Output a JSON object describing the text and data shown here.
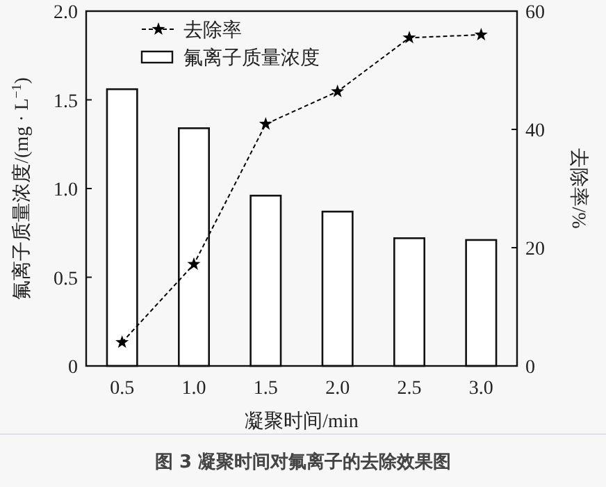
{
  "chart_data": {
    "type": "bar",
    "xlabel": "凝聚时间/min",
    "ylabel": "氟离子质量浓度/(mg · L$^{−1}$)",
    "y2label": "去除率/%",
    "categories": [
      "0.5",
      "1.0",
      "1.5",
      "2.0",
      "2.5",
      "3.0"
    ],
    "series": [
      {
        "name": "氟离子质量浓度",
        "color": "#ffffff",
        "values": [
          1.56,
          1.34,
          0.96,
          0.87,
          0.72,
          0.71
        ]
      },
      {
        "name": "去除率",
        "type": "line",
        "axis": "y2",
        "color": "#000000",
        "marker": "star",
        "line_style": "dashed",
        "values": [
          4.0,
          17.2,
          40.9,
          46.4,
          55.5,
          56.0
        ]
      }
    ],
    "ylim": [
      0,
      2.0
    ],
    "yticks": [
      {
        "value": 0,
        "label": "0"
      },
      0.5,
      {
        "value": 1.0,
        "label": "1.0"
      },
      1.5,
      {
        "value": 2.0,
        "label": "2.0"
      }
    ],
    "y2lim": [
      0,
      60
    ],
    "y2ticks": [
      0,
      20,
      40,
      60
    ],
    "legend": "top left",
    "grid": false,
    "annotations": [
      "图 3  凝聚时间对氟离子的去除效果图"
    ]
  }
}
